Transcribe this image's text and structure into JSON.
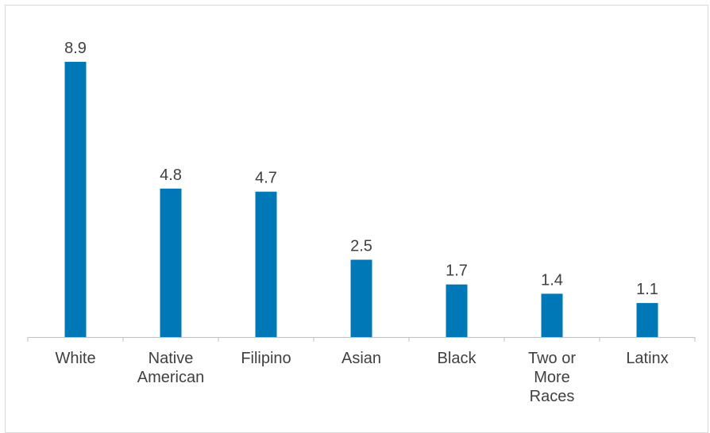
{
  "chart_data": {
    "type": "bar",
    "title": "",
    "xlabel": "",
    "ylabel": "",
    "categories": [
      [
        "White"
      ],
      [
        "Native",
        "American"
      ],
      [
        "Filipino"
      ],
      [
        "Asian"
      ],
      [
        "Black"
      ],
      [
        "Two or",
        "More",
        "Races"
      ],
      [
        "Latinx"
      ]
    ],
    "values": [
      8.9,
      4.8,
      4.7,
      2.5,
      1.7,
      1.4,
      1.1
    ],
    "value_labels": [
      "8.9",
      "4.8",
      "4.7",
      "2.5",
      "1.7",
      "1.4",
      "1.1"
    ],
    "ylim": [
      0,
      9.5
    ],
    "grid": false,
    "legend": "none",
    "bar_color": "#0077b6",
    "axis_color": "#bfbfbf",
    "text_color": "#404040"
  }
}
